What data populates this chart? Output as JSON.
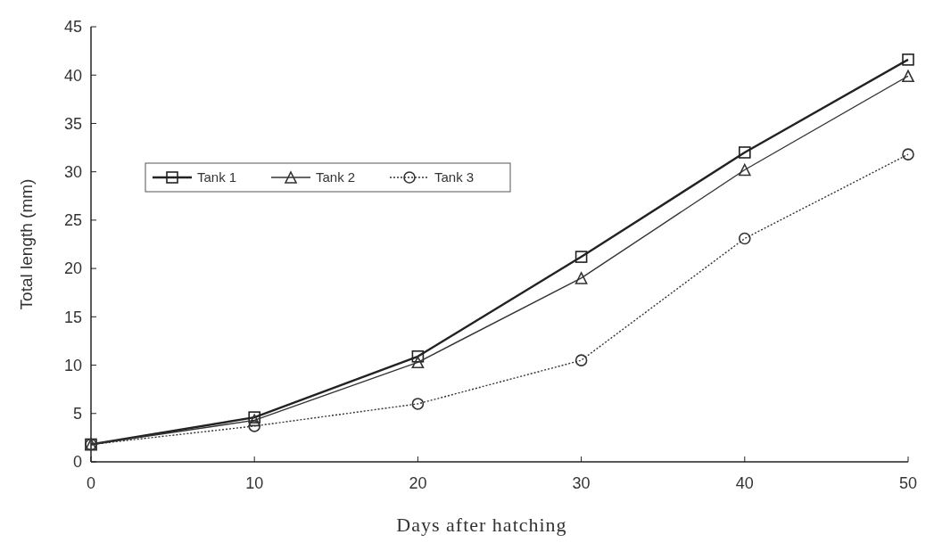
{
  "chart_data": {
    "type": "line",
    "xlabel": "Days after hatching",
    "ylabel": "Total length (mm)",
    "x": [
      0,
      10,
      20,
      30,
      40,
      50
    ],
    "xlim": [
      0,
      50
    ],
    "xticks": [
      0,
      10,
      20,
      30,
      40,
      50
    ],
    "ylim": [
      0,
      45
    ],
    "yticks": [
      0,
      5,
      10,
      15,
      20,
      25,
      30,
      35,
      40,
      45
    ],
    "grid": false,
    "legend": "top left",
    "series": [
      {
        "name": "Tank 1",
        "color": "#222222",
        "marker": "square",
        "line_style": "solid",
        "values": [
          1.8,
          4.6,
          10.9,
          21.2,
          32,
          41.6
        ]
      },
      {
        "name": "Tank 2",
        "color": "#333333",
        "marker": "triangle",
        "line_style": "solid",
        "values": [
          1.8,
          4.3,
          10.3,
          19,
          30.2,
          39.9
        ]
      },
      {
        "name": "Tank 3",
        "color": "#333333",
        "marker": "circle",
        "line_style": "dotted",
        "values": [
          1.8,
          3.7,
          6,
          10.5,
          23.1,
          31.8
        ]
      }
    ]
  }
}
